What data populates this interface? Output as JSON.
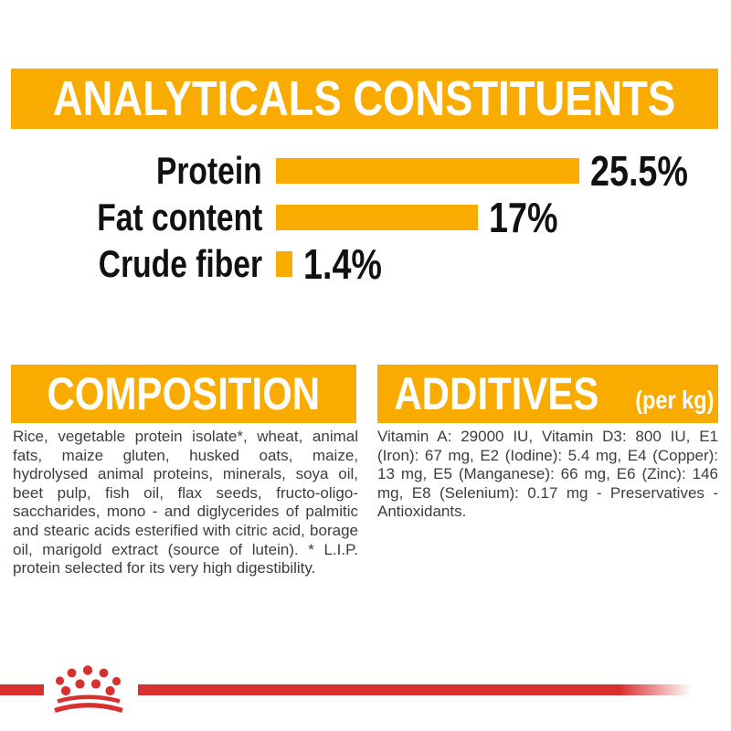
{
  "colors": {
    "accent_orange": "#F9AB00",
    "brand_red": "#D8302F",
    "heading_text": "#FFFFFF",
    "label_text": "#111111",
    "body_text": "#3D3D3D"
  },
  "analyticals": {
    "title": "ANALYTICALS CONSTITUENTS"
  },
  "chart_data": {
    "type": "bar",
    "orientation": "horizontal",
    "title": "ANALYTICALS CONSTITUENTS",
    "categories": [
      "Protein",
      "Fat content",
      "Crude fiber"
    ],
    "values": [
      25.5,
      17,
      1.4
    ],
    "value_labels": [
      "25.5%",
      "17%",
      "1.4%"
    ],
    "unit": "%",
    "bar_color": "#F9AB00",
    "xlim": [
      0,
      26
    ],
    "grid": false,
    "legend": false,
    "value_label_position": "end-of-bar"
  },
  "composition": {
    "title": "COMPOSITION",
    "body": "Rice, vegetable protein isolate*, wheat, animal fats, maize gluten, husked oats, maize, hydrolysed animal proteins, minerals, soya oil, beet pulp, fish oil, flax seeds, fructo-oligo-saccharides, mono - and diglycerides of palmitic and stearic acids esterified with citric acid, borage oil, marigold extract (source of lutein). * L.I.P. protein selected for its very high digestibility."
  },
  "additives": {
    "title": "ADDITIVES",
    "unit": "(per kg)",
    "body": "Vitamin A: 29000 IU, Vitamin D3: 800 IU, E1 (Iron): 67 mg, E2 (Iodine): 5.4 mg, E4 (Copper): 13 mg, E5 (Manganese): 66 mg, E6 (Zinc): 146 mg, E8 (Selenium): 0.17 mg - Preservatives - Antioxidants."
  },
  "footer": {
    "brand_mark": "royal-canin-crown-logo"
  }
}
